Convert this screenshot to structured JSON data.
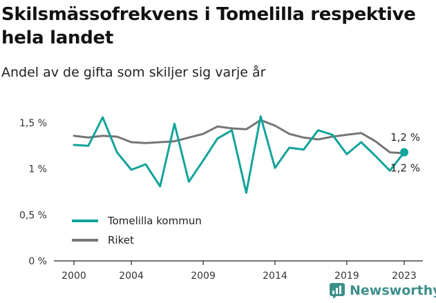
{
  "title": "Skilsmässofrekvens i Tomelilla respektive hela landet",
  "subtitle": "Andel av de gifta som skiljer sig varje år",
  "brand": {
    "name": "Newsworthy",
    "icon": "newsworthy-logo-icon",
    "color": "#3d8f8a"
  },
  "chart_data": {
    "type": "line",
    "x": [
      2000,
      2001,
      2002,
      2003,
      2004,
      2005,
      2006,
      2007,
      2008,
      2009,
      2010,
      2011,
      2012,
      2013,
      2014,
      2015,
      2016,
      2017,
      2018,
      2019,
      2020,
      2021,
      2022,
      2023
    ],
    "x_ticks": [
      2000,
      2004,
      2009,
      2014,
      2019,
      2023
    ],
    "y_ticks": [
      0,
      0.5,
      1,
      1.5
    ],
    "y_tick_labels": [
      "0 %",
      "0,5 %",
      "1 %",
      "1,5 %"
    ],
    "ylim": [
      0,
      1.5
    ],
    "grid": false,
    "legend_position": "bottom-left",
    "series": [
      {
        "name": "Tomelilla kommun",
        "color": "#12a399",
        "values": [
          1.26,
          1.25,
          1.56,
          1.18,
          0.99,
          1.05,
          0.81,
          1.49,
          0.86,
          1.09,
          1.33,
          1.42,
          0.74,
          1.57,
          1.01,
          1.23,
          1.21,
          1.42,
          1.37,
          1.16,
          1.29,
          1.14,
          0.98,
          1.18
        ],
        "end_label": "1,2 %"
      },
      {
        "name": "Riket",
        "color": "#757575",
        "values": [
          1.36,
          1.34,
          1.36,
          1.35,
          1.29,
          1.28,
          1.29,
          1.3,
          1.34,
          1.38,
          1.46,
          1.44,
          1.43,
          1.53,
          1.47,
          1.38,
          1.34,
          1.32,
          1.35,
          1.37,
          1.39,
          1.3,
          1.18,
          1.17
        ],
        "end_label": "1,2 %"
      }
    ]
  }
}
